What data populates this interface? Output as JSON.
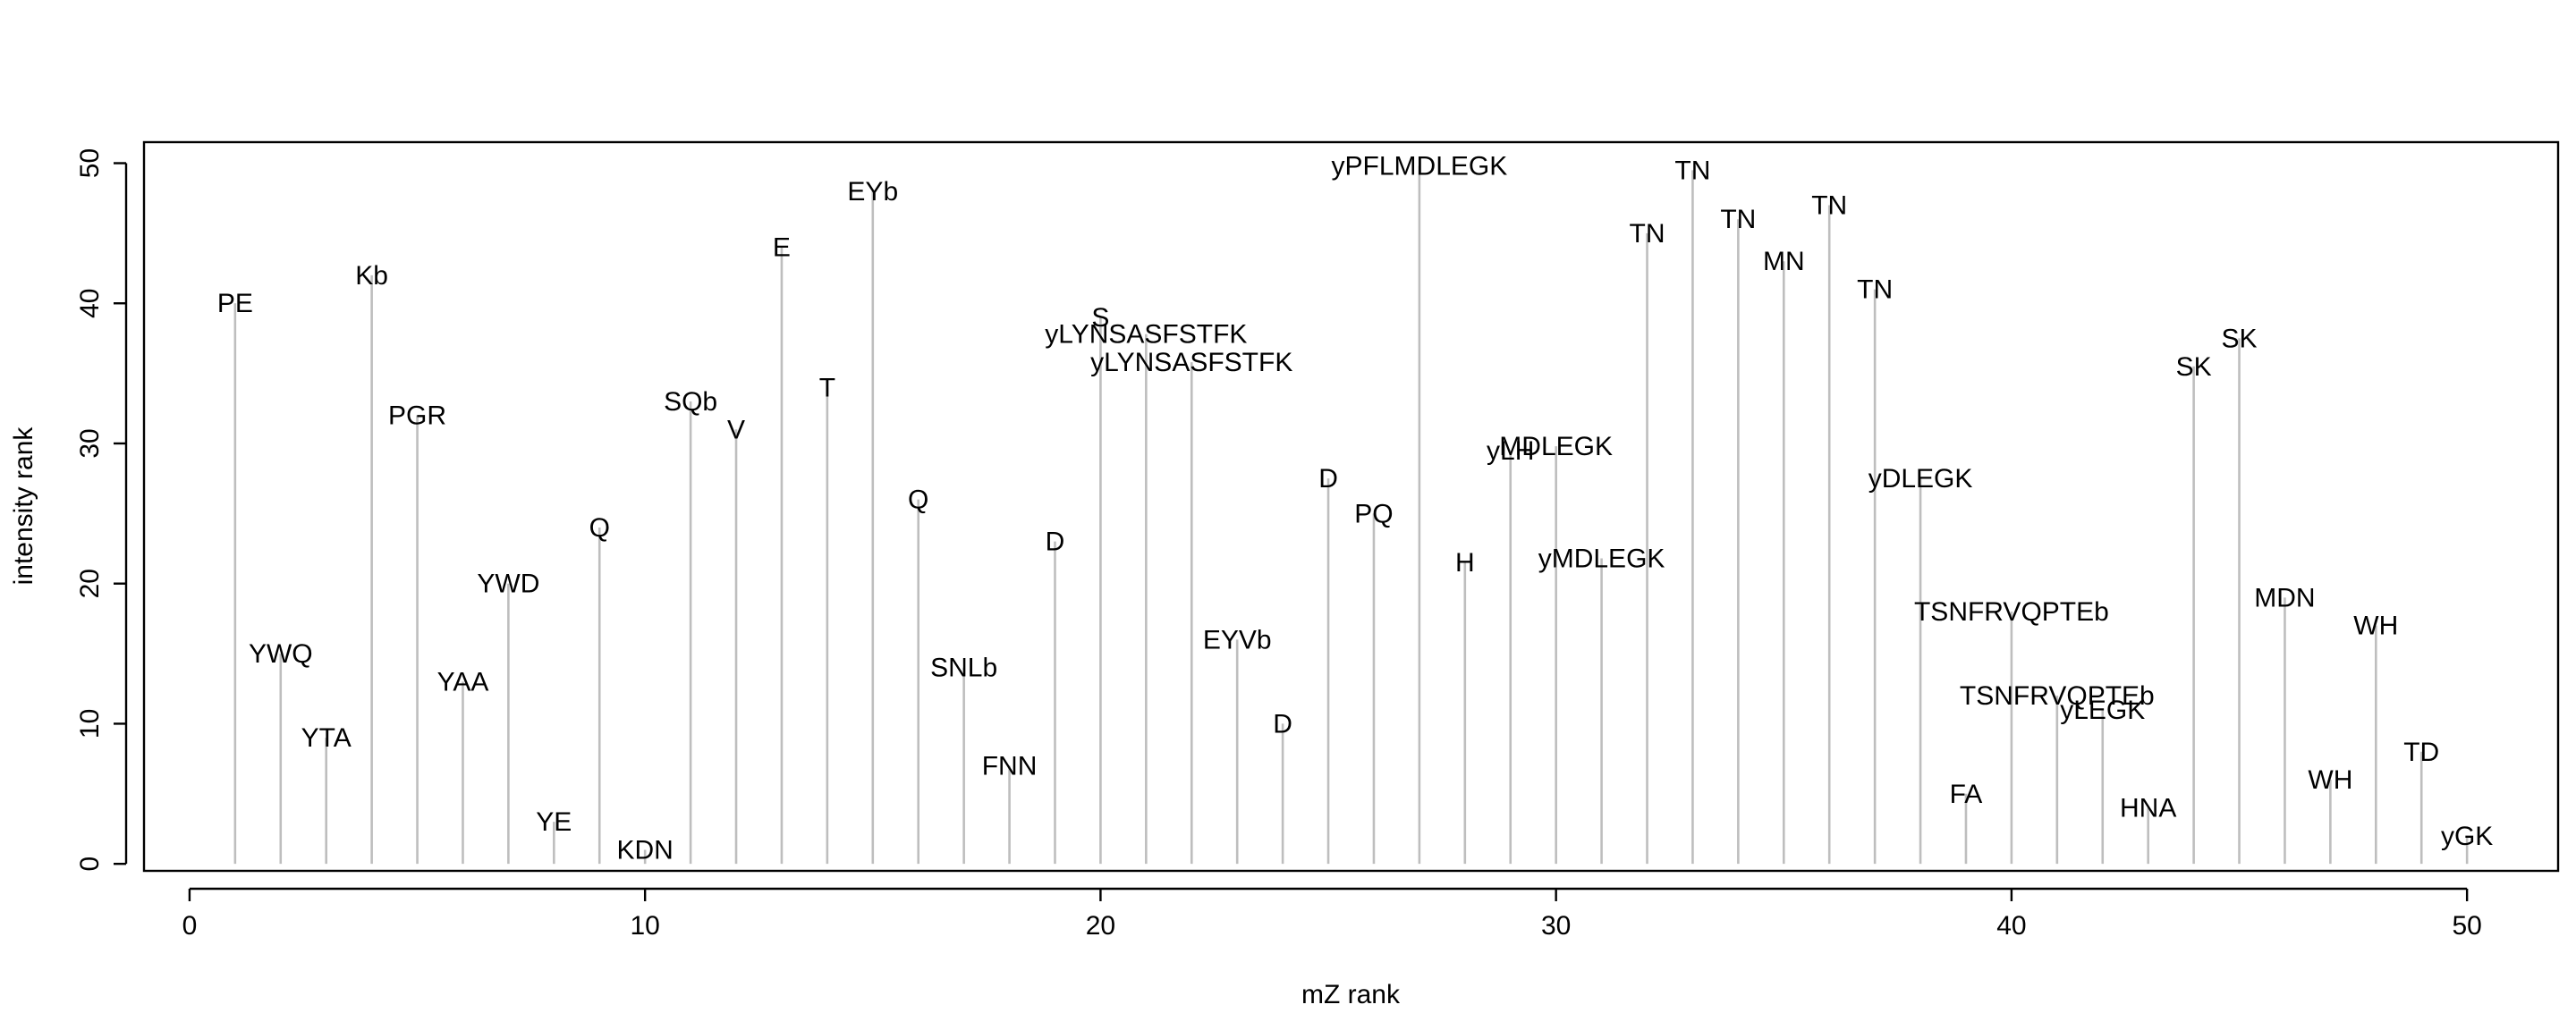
{
  "chart_data": {
    "type": "bar",
    "subtype": "spectrum-stick",
    "title": "",
    "xlabel": "mZ rank",
    "ylabel": "intensity rank",
    "xlim": [
      -1,
      52
    ],
    "ylim": [
      -0.5,
      51.5
    ],
    "xticks": [
      0,
      10,
      20,
      30,
      40,
      50
    ],
    "yticks": [
      0,
      10,
      20,
      30,
      40,
      50
    ],
    "grid": false,
    "line_color": "#bebebe",
    "points": [
      {
        "x": 1,
        "y": 40,
        "label": "PE"
      },
      {
        "x": 2,
        "y": 15,
        "label": "YWQ"
      },
      {
        "x": 3,
        "y": 9,
        "label": "YTA"
      },
      {
        "x": 4,
        "y": 42,
        "label": "Kb"
      },
      {
        "x": 5,
        "y": 32,
        "label": "PGR"
      },
      {
        "x": 6,
        "y": 13,
        "label": "YAA"
      },
      {
        "x": 7,
        "y": 20,
        "label": "YWD"
      },
      {
        "x": 8,
        "y": 3,
        "label": "YE"
      },
      {
        "x": 9,
        "y": 24,
        "label": "Q"
      },
      {
        "x": 10,
        "y": 1,
        "label": "KDN"
      },
      {
        "x": 11,
        "y": 33,
        "label": "SQb"
      },
      {
        "x": 12,
        "y": 31,
        "label": "V"
      },
      {
        "x": 13,
        "y": 44,
        "label": "E"
      },
      {
        "x": 14,
        "y": 34,
        "label": "T"
      },
      {
        "x": 15,
        "y": 48,
        "label": "EYb"
      },
      {
        "x": 16,
        "y": 26,
        "label": "Q"
      },
      {
        "x": 17,
        "y": 14,
        "label": "SNLb"
      },
      {
        "x": 18,
        "y": 7,
        "label": "FNN"
      },
      {
        "x": 19,
        "y": 23,
        "label": "D"
      },
      {
        "x": 20,
        "y": 39,
        "label": "S"
      },
      {
        "x": 21,
        "y": 37.8,
        "label": "yLYNSASFSTFK"
      },
      {
        "x": 22,
        "y": 35.8,
        "label": "yLYNSASFSTFK"
      },
      {
        "x": 23,
        "y": 16,
        "label": "EYVb"
      },
      {
        "x": 24,
        "y": 10,
        "label": "D"
      },
      {
        "x": 25,
        "y": 27.5,
        "label": "D"
      },
      {
        "x": 26,
        "y": 25,
        "label": "PQ"
      },
      {
        "x": 27,
        "y": 49.8,
        "label": "yPFLMDLEGK"
      },
      {
        "x": 28,
        "y": 21.5,
        "label": "H"
      },
      {
        "x": 29,
        "y": 29.5,
        "label": "yLH"
      },
      {
        "x": 30,
        "y": 29.8,
        "label": "MDLEGK"
      },
      {
        "x": 31,
        "y": 21.8,
        "label": "yMDLEGK"
      },
      {
        "x": 32,
        "y": 45,
        "label": "TN"
      },
      {
        "x": 33,
        "y": 49.5,
        "label": "TN"
      },
      {
        "x": 34,
        "y": 46,
        "label": "TN"
      },
      {
        "x": 35,
        "y": 43,
        "label": "MN"
      },
      {
        "x": 36,
        "y": 47,
        "label": "TN"
      },
      {
        "x": 37,
        "y": 41,
        "label": "TN"
      },
      {
        "x": 38,
        "y": 27.5,
        "label": "yDLEGK"
      },
      {
        "x": 39,
        "y": 5,
        "label": "FA"
      },
      {
        "x": 40,
        "y": 18,
        "label": "TSNFRVQPTEb"
      },
      {
        "x": 41,
        "y": 12,
        "label": "TSNFRVQPTEb"
      },
      {
        "x": 42,
        "y": 11,
        "label": "yLEGK"
      },
      {
        "x": 43,
        "y": 4,
        "label": "HNA"
      },
      {
        "x": 44,
        "y": 35.5,
        "label": "SK"
      },
      {
        "x": 45,
        "y": 37.5,
        "label": "SK"
      },
      {
        "x": 46,
        "y": 19,
        "label": "MDN"
      },
      {
        "x": 47,
        "y": 6,
        "label": "WH"
      },
      {
        "x": 48,
        "y": 17,
        "label": "WH"
      },
      {
        "x": 49,
        "y": 8,
        "label": "TD"
      },
      {
        "x": 50,
        "y": 2,
        "label": "yGK"
      }
    ]
  }
}
